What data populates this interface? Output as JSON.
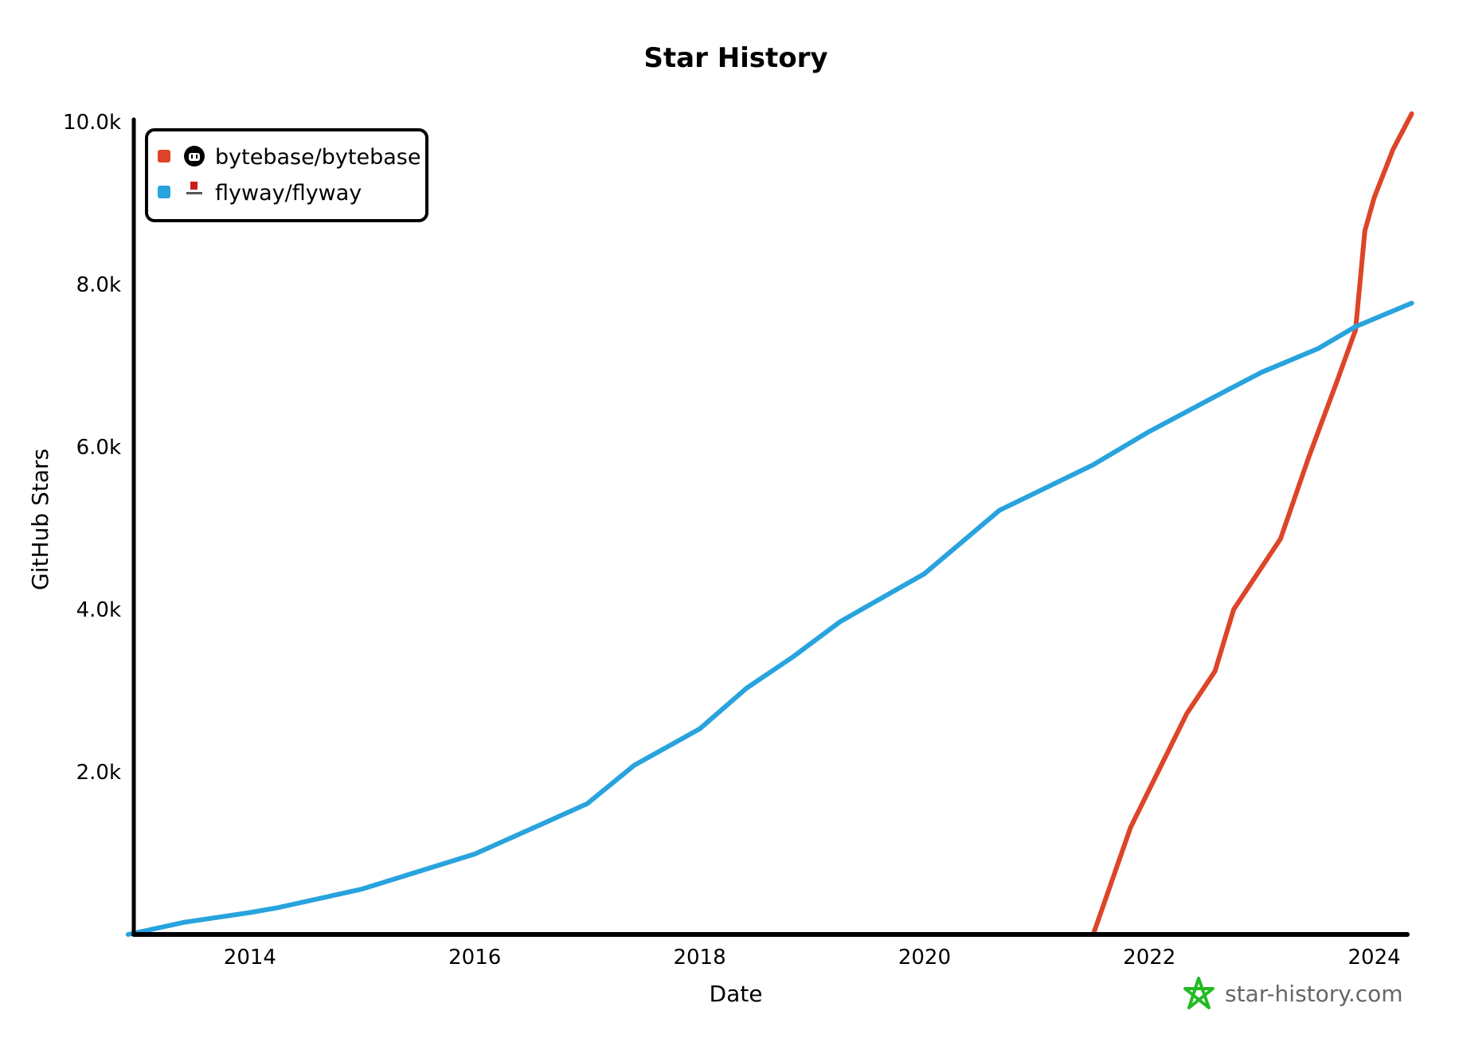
{
  "chart_data": {
    "type": "line",
    "title": "Star History",
    "xlabel": "Date",
    "ylabel": "GitHub Stars",
    "xlim": [
      "2012-12",
      "2024-05"
    ],
    "ylim": [
      0,
      10000
    ],
    "x_ticks": [
      "2014",
      "2016",
      "2018",
      "2020",
      "2022",
      "2024"
    ],
    "y_ticks": [
      {
        "value": 2000,
        "label": "2.0k"
      },
      {
        "value": 4000,
        "label": "4.0k"
      },
      {
        "value": 6000,
        "label": "6.0k"
      },
      {
        "value": 8000,
        "label": "8.0k"
      },
      {
        "value": 10000,
        "label": "10.0k"
      }
    ],
    "grid": false,
    "legend_position": "top-left",
    "series": [
      {
        "name": "bytebase/bytebase",
        "color": "#dd4528",
        "icon": "github-icon",
        "x": [
          "2021-07",
          "2021-11",
          "2022-02",
          "2022-05",
          "2022-08",
          "2022-10",
          "2023-03",
          "2023-06",
          "2023-09",
          "2023-11",
          "2023-12",
          "2024-01",
          "2024-03",
          "2024-05"
        ],
        "y": [
          0,
          1320,
          2020,
          2720,
          3240,
          4000,
          4870,
          5870,
          6800,
          7440,
          8660,
          9070,
          9660,
          10100
        ]
      },
      {
        "name": "flyway/flyway",
        "color": "#28a3dd",
        "icon": "flyway-logo-icon",
        "x": [
          "2012-12",
          "2013-06",
          "2014-01",
          "2014-04",
          "2015-01",
          "2016-01",
          "2016-08",
          "2017-01",
          "2017-06",
          "2018-01",
          "2018-06",
          "2018-11",
          "2019-04",
          "2020-01",
          "2020-09",
          "2021-07",
          "2022-01",
          "2022-09",
          "2023-01",
          "2023-07",
          "2023-11",
          "2024-05"
        ],
        "y": [
          0,
          150,
          270,
          330,
          560,
          990,
          1350,
          1610,
          2080,
          2530,
          3030,
          3420,
          3850,
          4440,
          5220,
          5780,
          6190,
          6680,
          6920,
          7210,
          7480,
          7770
        ]
      }
    ],
    "watermark": "star-history.com",
    "watermark_color": "#22bb22"
  }
}
